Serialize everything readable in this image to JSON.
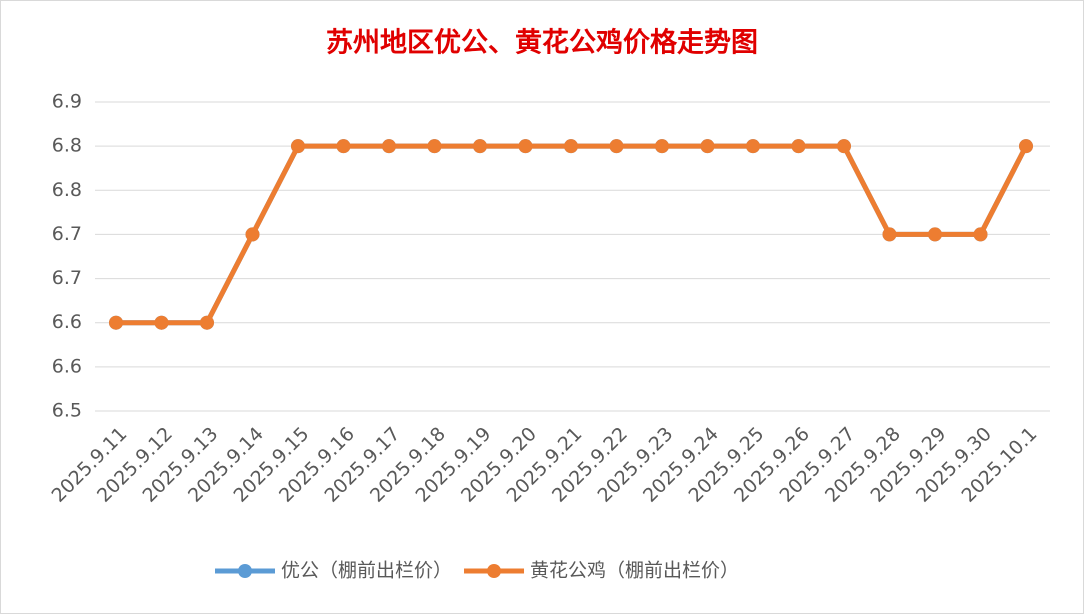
{
  "chart_data": {
    "type": "line",
    "title": "苏州地区优公、黄花公鸡价格走势图",
    "categories": [
      "2025.9.11",
      "2025.9.12",
      "2025.9.13",
      "2025.9.14",
      "2025.9.15",
      "2025.9.16",
      "2025.9.17",
      "2025.9.18",
      "2025.9.19",
      "2025.9.20",
      "2025.9.21",
      "2025.9.22",
      "2025.9.23",
      "2025.9.24",
      "2025.9.25",
      "2025.9.26",
      "2025.9.27",
      "2025.9.28",
      "2025.9.29",
      "2025.9.30",
      "2025.10.1"
    ],
    "series": [
      {
        "name": "优公（棚前出栏价）",
        "color": "#5b9bd5",
        "values": [
          6.6,
          6.6,
          6.6,
          6.7,
          6.8,
          6.8,
          6.8,
          6.8,
          6.8,
          6.8,
          6.8,
          6.8,
          6.8,
          6.8,
          6.8,
          6.8,
          6.8,
          6.7,
          6.7,
          6.7,
          6.8
        ]
      },
      {
        "name": "黄花公鸡（棚前出栏价）",
        "color": "#ed7d31",
        "values": [
          6.6,
          6.6,
          6.6,
          6.7,
          6.8,
          6.8,
          6.8,
          6.8,
          6.8,
          6.8,
          6.8,
          6.8,
          6.8,
          6.8,
          6.8,
          6.8,
          6.8,
          6.7,
          6.7,
          6.7,
          6.8
        ]
      }
    ],
    "ylim": [
      6.5,
      6.85
    ],
    "yticks": [
      6.5,
      {
        "value": 6.55,
        "label": "6.6"
      },
      6.6,
      {
        "value": 6.65,
        "label": "6.7"
      },
      6.7,
      {
        "value": 6.75,
        "label": "6.8"
      },
      6.8,
      {
        "value": 6.85,
        "label": "6.9"
      }
    ],
    "grid": true,
    "legend": "bottom"
  }
}
